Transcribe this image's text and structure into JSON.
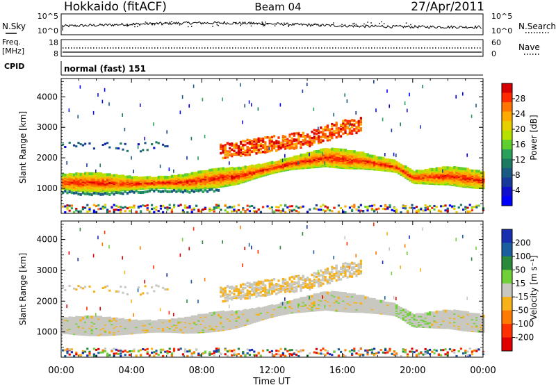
{
  "header": {
    "title": "Hokkaido (fitACF)",
    "beam": "Beam 04",
    "date": "27/Apr/2011"
  },
  "status_panels": {
    "nsky_label": "N.Sky",
    "nsearch_label": "N.Search",
    "count_ticks": [
      "10^5",
      "10^0"
    ],
    "freq_label_1": "Freq.",
    "freq_label_2": "[MHz]",
    "freq_ticks": [
      "18",
      "8"
    ],
    "nave_label": "Nave",
    "nave_ticks": [
      "60",
      "0"
    ],
    "cpid_label": "CPID",
    "cpid_value": "normal (fast) 151"
  },
  "colorbars": {
    "power": {
      "label": "Power [dB]",
      "ticks": [
        "28",
        "24",
        "20",
        "16",
        "12",
        "8",
        "4"
      ],
      "colors": [
        "#d60000",
        "#ff2a00",
        "#ff7700",
        "#ffaa00",
        "#e8d000",
        "#b6e000",
        "#5fcf30",
        "#2aa05a",
        "#1c7a63",
        "#1a5a82",
        "#173a9a",
        "#1010cc",
        "#0000ff"
      ]
    },
    "velocity": {
      "label": "Velocity [m s⁻¹]",
      "ticks": [
        "200",
        "100",
        "50",
        "15",
        "-15",
        "-50",
        "-100",
        "-200"
      ],
      "colors": [
        "#1830b0",
        "#1b5ea0",
        "#2a8a3a",
        "#6fd038",
        "#c8c8c0",
        "#f7b21a",
        "#ff7a00",
        "#ff3000",
        "#e00000"
      ]
    }
  },
  "axes": {
    "y_label": "Slant Range [km]",
    "y_ticks": [
      "4000",
      "3000",
      "2000",
      "1000"
    ],
    "x_label": "Time UT",
    "x_ticks": [
      "00:00",
      "04:00",
      "08:00",
      "12:00",
      "16:00",
      "20:00",
      "00:00"
    ]
  },
  "chart_data": [
    {
      "type": "heatmap",
      "title": "Power [dB]",
      "x_unit": "hours UT",
      "xlim": [
        0,
        24
      ],
      "y_unit": "km",
      "ylim": [
        180,
        4600
      ],
      "colorbar_ticks": [
        4,
        8,
        12,
        16,
        20,
        24,
        28
      ],
      "main_band_center_km": [
        [
          0,
          1200
        ],
        [
          4,
          1150
        ],
        [
          7,
          1200
        ],
        [
          10,
          1400
        ],
        [
          13,
          1800
        ],
        [
          15,
          2000
        ],
        [
          17,
          1900
        ],
        [
          19,
          1700
        ],
        [
          20,
          1350
        ],
        [
          22,
          1400
        ],
        [
          24,
          1250
        ]
      ],
      "upper_patch_km": [
        [
          14,
          2400
        ],
        [
          16,
          2600
        ]
      ]
    },
    {
      "type": "heatmap",
      "title": "Velocity [m s⁻¹]",
      "x_unit": "hours UT",
      "xlim": [
        0,
        24
      ],
      "y_unit": "km",
      "ylim": [
        180,
        4600
      ],
      "colorbar_ticks": [
        -200,
        -100,
        -50,
        -15,
        15,
        50,
        100,
        200
      ]
    }
  ]
}
